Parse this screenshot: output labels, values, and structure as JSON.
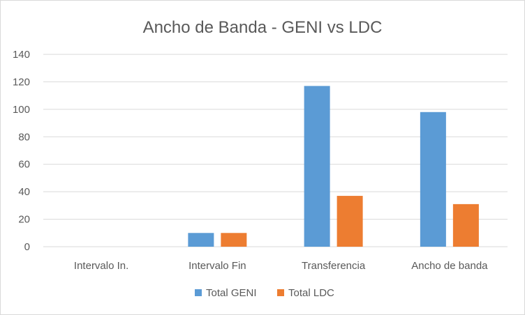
{
  "chart_data": {
    "type": "bar",
    "title": "Ancho de Banda - GENI vs LDC",
    "categories": [
      "Intervalo In.",
      "Intervalo Fin",
      "Transferencia",
      "Ancho de banda"
    ],
    "series": [
      {
        "name": "Total GENI",
        "color": "#5b9bd5",
        "values": [
          0,
          10,
          117,
          98
        ]
      },
      {
        "name": "Total LDC",
        "color": "#ed7d31",
        "values": [
          0,
          10,
          37,
          31
        ]
      }
    ],
    "yticks": [
      "0",
      "20",
      "40",
      "60",
      "80",
      "100",
      "120",
      "140"
    ],
    "ylim": [
      0,
      140
    ],
    "grid": true,
    "legend": "bottom",
    "xlabel": "",
    "ylabel": ""
  }
}
